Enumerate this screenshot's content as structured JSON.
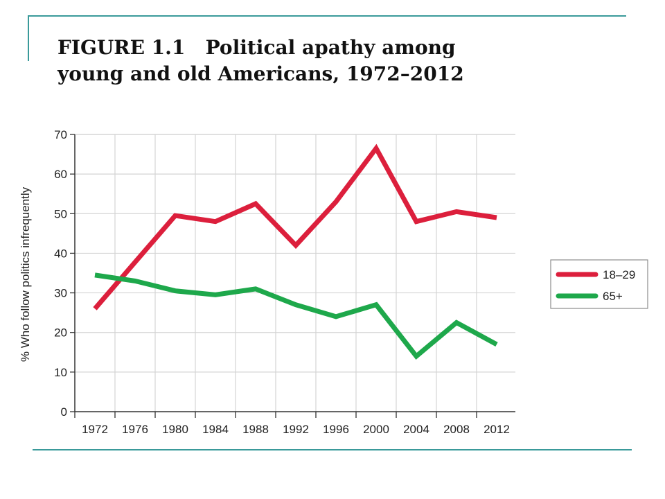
{
  "title": {
    "line1": "FIGURE 1.1   Political apathy among",
    "line2": "young and old Americans, 1972–2012"
  },
  "chart_data": {
    "type": "line",
    "title": "FIGURE 1.1 Political apathy among young and old Americans, 1972–2012",
    "xlabel": "",
    "ylabel": "% Who follow politics infrequently",
    "ylim": [
      0,
      70
    ],
    "yticks": [
      0,
      10,
      20,
      30,
      40,
      50,
      60,
      70
    ],
    "categories": [
      "1972",
      "1976",
      "1980",
      "1984",
      "1988",
      "1992",
      "1996",
      "2000",
      "2004",
      "2008",
      "2012"
    ],
    "grid": true,
    "legend_position": "right",
    "series": [
      {
        "name": "18–29",
        "color": "#dc1f3c",
        "points": [
          [
            1972,
            26
          ],
          [
            1980,
            49.5
          ],
          [
            1984,
            48
          ],
          [
            1988,
            52.5
          ],
          [
            1992,
            42
          ],
          [
            1996,
            53
          ],
          [
            2000,
            66.5
          ],
          [
            2004,
            48
          ],
          [
            2008,
            50.5
          ],
          [
            2012,
            49
          ]
        ]
      },
      {
        "name": "65+",
        "color": "#1ea84b",
        "points": [
          [
            1972,
            34.5
          ],
          [
            1976,
            33
          ],
          [
            1980,
            30.5
          ],
          [
            1984,
            29.5
          ],
          [
            1988,
            31
          ],
          [
            1992,
            27
          ],
          [
            1996,
            24
          ],
          [
            2000,
            27
          ],
          [
            2004,
            14
          ],
          [
            2008,
            22.5
          ],
          [
            2012,
            17
          ]
        ]
      }
    ]
  }
}
